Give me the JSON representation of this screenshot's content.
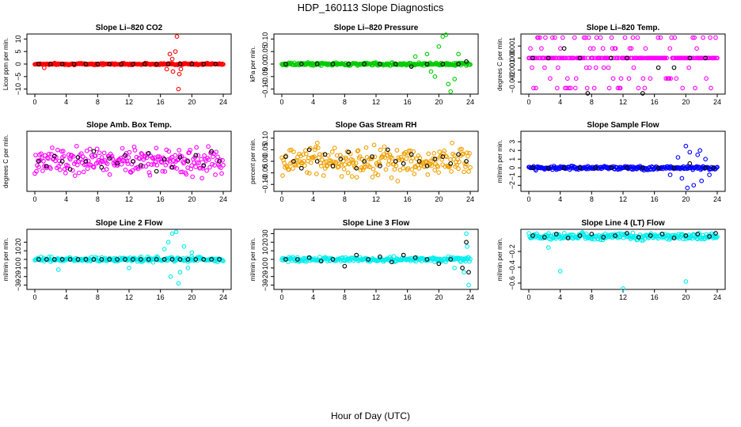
{
  "figure": {
    "title": "HDP_160113  Slope Diagnostics",
    "xlabel": "Hour of Day (UTC)"
  },
  "chart_data": [
    {
      "type": "scatter",
      "title": "Slope Li–820 CO2",
      "ylabel": "Licor ppm per min.",
      "color": "#ff0000",
      "xlim": [
        0,
        24
      ],
      "ylim": [
        -12,
        12
      ],
      "xticks": [
        0,
        4,
        8,
        12,
        16,
        20,
        24
      ],
      "yticks": [
        -10,
        -5,
        0,
        5,
        10
      ],
      "ytick_labels": [
        "−10",
        "−5",
        "0",
        "5",
        "10"
      ],
      "base": 0,
      "spread": 0.5,
      "spikes": [
        [
          17.2,
          4
        ],
        [
          17.6,
          -3
        ],
        [
          17.9,
          5
        ],
        [
          18.1,
          11
        ],
        [
          18.3,
          -10
        ],
        [
          18.4,
          -4
        ],
        [
          17.5,
          2
        ],
        [
          18.6,
          -2
        ],
        [
          1.2,
          -1.5
        ],
        [
          16.8,
          -2
        ]
      ],
      "black_x": [
        0.5,
        2,
        3.5,
        5,
        6.5,
        8,
        9.5,
        11,
        12.5,
        14,
        15.5,
        17,
        18.5,
        20,
        21.5,
        23
      ],
      "black_y": [
        0,
        0,
        0,
        0,
        0,
        0,
        0,
        0,
        0,
        0,
        0,
        0,
        0,
        0,
        0,
        0
      ]
    },
    {
      "type": "scatter",
      "title": "Slope Li–820 Pressure",
      "ylabel": "kPa per min.",
      "color": "#00cc00",
      "xlim": [
        0,
        24
      ],
      "ylim": [
        -0.12,
        0.12
      ],
      "xticks": [
        0,
        4,
        8,
        12,
        16,
        20,
        24
      ],
      "yticks": [
        -0.1,
        -0.05,
        0,
        0.05,
        0.1
      ],
      "ytick_labels": [
        "−0.10",
        "−0.05",
        "0.00",
        "0.05",
        "0.10"
      ],
      "base": 0,
      "spread": 0.008,
      "spikes": [
        [
          20.5,
          0.11
        ],
        [
          20.9,
          0.12
        ],
        [
          19.5,
          -0.05
        ],
        [
          21.2,
          -0.08
        ],
        [
          21.5,
          -0.11
        ],
        [
          18.5,
          0.04
        ],
        [
          20,
          0.07
        ],
        [
          22.5,
          0.04
        ],
        [
          22,
          -0.06
        ],
        [
          19,
          -0.03
        ],
        [
          17,
          0.03
        ]
      ],
      "black_x": [
        0.5,
        2.5,
        4.5,
        6.5,
        8.5,
        10.5,
        12.5,
        14.5,
        16.5,
        18.5,
        20.5,
        22.5,
        23.5
      ],
      "black_y": [
        0,
        0,
        0,
        0,
        0,
        0,
        0,
        0,
        -0.01,
        0,
        0,
        0,
        0.01
      ]
    },
    {
      "type": "scatter",
      "title": "Slope Li–820 Temp.",
      "ylabel": "degrees C per min.",
      "color": "#ff00ff",
      "xlim": [
        0,
        24
      ],
      "ylim": [
        -0.003,
        0.002
      ],
      "xticks": [
        0,
        4,
        8,
        12,
        16,
        20,
        24
      ],
      "yticks": [
        -0.002,
        -0.001,
        0,
        0.001
      ],
      "ytick_labels": [
        "−0.002",
        "−0.001",
        "0.000",
        "0.001"
      ],
      "base": 0,
      "spread": 0,
      "levels": [
        0.0017,
        0.0008,
        0,
        -0.0008,
        -0.0017,
        -0.0025
      ],
      "black_x": [
        0.5,
        2.5,
        4.5,
        6.5,
        7.5,
        10.5,
        12.5,
        14.5,
        16.5,
        18.5,
        20.5,
        22.5
      ],
      "black_y": [
        0,
        0,
        0.0008,
        0,
        -0.003,
        0,
        0,
        -0.003,
        -0.0008,
        -0.0008,
        0,
        0
      ]
    },
    {
      "type": "scatter",
      "title": "Slope Amb. Box Temp.",
      "ylabel": "degrees C per min.",
      "color": "#ff00ff",
      "xlim": [
        0,
        24
      ],
      "ylim": [
        -0.03,
        0.03
      ],
      "xticks": [
        0,
        4,
        8,
        12,
        16,
        20,
        24
      ],
      "yticks": [],
      "ytick_labels": [],
      "base": 0,
      "spread": 0.02,
      "black_x": [
        0.5,
        1.5,
        2.5,
        3.5,
        4.5,
        5.5,
        6.5,
        7.5,
        8.5,
        9.5,
        10.5,
        11.5,
        12.5,
        13.5,
        14.5,
        15.5,
        16.5,
        17.5,
        18.5,
        19.5,
        20.5,
        21.5,
        22.5,
        23.5
      ],
      "black_y": [
        0,
        -0.005,
        0.005,
        0,
        -0.008,
        0.004,
        0,
        0.01,
        -0.006,
        0.003,
        -0.002,
        0.006,
        0,
        -0.004,
        0.008,
        -0.01,
        0.002,
        -0.006,
        0.004,
        0,
        0.006,
        -0.004,
        0.01,
        0
      ]
    },
    {
      "type": "scatter",
      "title": "Slope Gas Stream RH",
      "ylabel": "percent per min.",
      "color": "#f0a000",
      "xlim": [
        0,
        24
      ],
      "ylim": [
        -0.13,
        0.13
      ],
      "xticks": [
        0,
        4,
        8,
        12,
        16,
        20,
        24
      ],
      "yticks": [
        -0.1,
        -0.05,
        0,
        0.05,
        0.1
      ],
      "ytick_labels": [
        "−0.10",
        "−0.05",
        "0.00",
        "0.05",
        "0.10"
      ],
      "base": 0,
      "spread": 0.09,
      "black_x": [
        0.5,
        1.5,
        2.5,
        3.5,
        4.5,
        5.5,
        6.5,
        7.5,
        8.5,
        9.5,
        10.5,
        11.5,
        12.5,
        13.5,
        14.5,
        15.5,
        16.5,
        17.5,
        18.5,
        19.5,
        20.5,
        21.5,
        22.5,
        23.5
      ],
      "black_y": [
        0.02,
        0,
        -0.03,
        0.05,
        0,
        0.03,
        -0.02,
        0.01,
        0.04,
        -0.03,
        0,
        0.02,
        -0.02,
        0.05,
        0,
        -0.01,
        0.03,
        0,
        -0.02,
        0.01,
        0.02,
        -0.01,
        0.03,
        0
      ]
    },
    {
      "type": "scatter",
      "title": "Slope Sample Flow",
      "ylabel": "ml/min per min.",
      "color": "#0000ff",
      "xlim": [
        0,
        24
      ],
      "ylim": [
        -2.7,
        4.2
      ],
      "xticks": [
        0,
        4,
        8,
        12,
        16,
        20,
        24
      ],
      "yticks": [
        -2,
        -1,
        0,
        1,
        2,
        3
      ],
      "ytick_labels": [
        "−2",
        "−1",
        "0",
        "1",
        "2",
        "3"
      ],
      "base": 0,
      "spread": 0.3,
      "spikes": [
        [
          20,
          2.5
        ],
        [
          20.5,
          1.8
        ],
        [
          21,
          -2
        ],
        [
          21.5,
          1.5
        ],
        [
          22,
          -1.5
        ],
        [
          19.5,
          -1.2
        ],
        [
          20.2,
          -2.3
        ],
        [
          22.5,
          1
        ],
        [
          23,
          -0.8
        ],
        [
          19,
          1.2
        ],
        [
          18,
          -0.8
        ],
        [
          21.8,
          2
        ]
      ],
      "black_x": [
        0.5,
        2.5,
        4.5,
        6.5,
        8.5,
        10.5,
        12.5,
        14.5,
        16.5,
        18.5,
        20.5,
        22.5,
        23.5
      ],
      "black_y": [
        0,
        0,
        0,
        0,
        0,
        0,
        0,
        0,
        0,
        0,
        0.5,
        0,
        0
      ]
    },
    {
      "type": "scatter",
      "title": "Slope Line 2 Flow",
      "ylabel": "ml/min per min.",
      "color": "#00eeee",
      "xlim": [
        0,
        24
      ],
      "ylim": [
        -35,
        35
      ],
      "xticks": [
        0,
        4,
        8,
        12,
        16,
        20,
        24
      ],
      "yticks": [
        -30,
        -20,
        -10,
        0,
        10,
        20
      ],
      "ytick_labels": [
        "−30",
        "−20",
        "−10",
        "0",
        "10",
        "20"
      ],
      "base": 0,
      "spread": 4,
      "spikes": [
        [
          17.5,
          30
        ],
        [
          18,
          32
        ],
        [
          17,
          20
        ],
        [
          18.5,
          -15
        ],
        [
          19,
          15
        ],
        [
          17.3,
          -20
        ],
        [
          19.5,
          -10
        ],
        [
          16.5,
          12
        ],
        [
          20,
          8
        ],
        [
          3,
          -12
        ],
        [
          12,
          -10
        ],
        [
          18.3,
          -28
        ]
      ],
      "black_x": [
        0.5,
        1.5,
        2.5,
        3.5,
        4.5,
        5.5,
        6.5,
        7.5,
        8.5,
        9.5,
        10.5,
        11.5,
        12.5,
        13.5,
        14.5,
        15.5,
        16.5,
        17.5,
        18.5,
        19.5,
        20.5,
        21.5,
        22.5,
        23.5
      ],
      "black_y": [
        0,
        0,
        0,
        0,
        0,
        0,
        0,
        0,
        0,
        0,
        0,
        0,
        0,
        0,
        0,
        0,
        0,
        0,
        0,
        0,
        0,
        0,
        0,
        0
      ]
    },
    {
      "type": "scatter",
      "title": "Slope Line 3 Flow",
      "ylabel": "ml/min per min.",
      "color": "#00eeee",
      "xlim": [
        0,
        24
      ],
      "ylim": [
        -35,
        35
      ],
      "xticks": [
        0,
        4,
        8,
        12,
        16,
        20,
        24
      ],
      "yticks": [
        -30,
        -20,
        -10,
        0,
        10,
        20,
        30
      ],
      "ytick_labels": [
        "−30",
        "−20",
        "−10",
        "0",
        "10",
        "20",
        "30"
      ],
      "base": 0,
      "spread": 4,
      "spikes": [
        [
          23.5,
          30
        ],
        [
          23.8,
          -30
        ],
        [
          23.2,
          -15
        ],
        [
          23.6,
          15
        ],
        [
          22,
          -10
        ]
      ],
      "black_x": [
        0.5,
        2,
        3.5,
        5,
        6.5,
        8,
        9.5,
        11,
        12.5,
        14,
        15.5,
        17,
        18.5,
        20,
        21.5,
        23,
        23.5,
        23.8
      ],
      "black_y": [
        0,
        0,
        2,
        -2,
        0,
        -8,
        5,
        0,
        3,
        -3,
        5,
        2,
        0,
        -5,
        0,
        -10,
        20,
        -15
      ]
    },
    {
      "type": "scatter",
      "title": "Slope Line 4 (LT) Flow",
      "ylabel": "ml/min per min.",
      "color": "#00eeee",
      "xlim": [
        0,
        24
      ],
      "ylim": [
        -0.68,
        0.08
      ],
      "xticks": [
        0,
        4,
        8,
        12,
        16,
        20,
        24
      ],
      "yticks": [
        -0.6,
        -0.4,
        -0.2
      ],
      "ytick_labels": [
        "−0.6",
        "−0.4",
        "−0.2"
      ],
      "base": -0.01,
      "spread": 0.06,
      "spikes": [
        [
          4,
          -0.45
        ],
        [
          12,
          -0.67
        ],
        [
          20,
          -0.58
        ],
        [
          2.5,
          -0.15
        ]
      ],
      "black_x": [
        0.5,
        2,
        3.5,
        5,
        6.5,
        8,
        9.5,
        11,
        12.5,
        14,
        15.5,
        17,
        18.5,
        20,
        21.5,
        23,
        23.8
      ],
      "black_y": [
        0,
        -0.02,
        0.02,
        -0.03,
        0,
        0.02,
        -0.02,
        0,
        0.03,
        -0.02,
        0,
        0.02,
        -0.03,
        0,
        0.02,
        -0.01,
        0.03
      ]
    }
  ]
}
